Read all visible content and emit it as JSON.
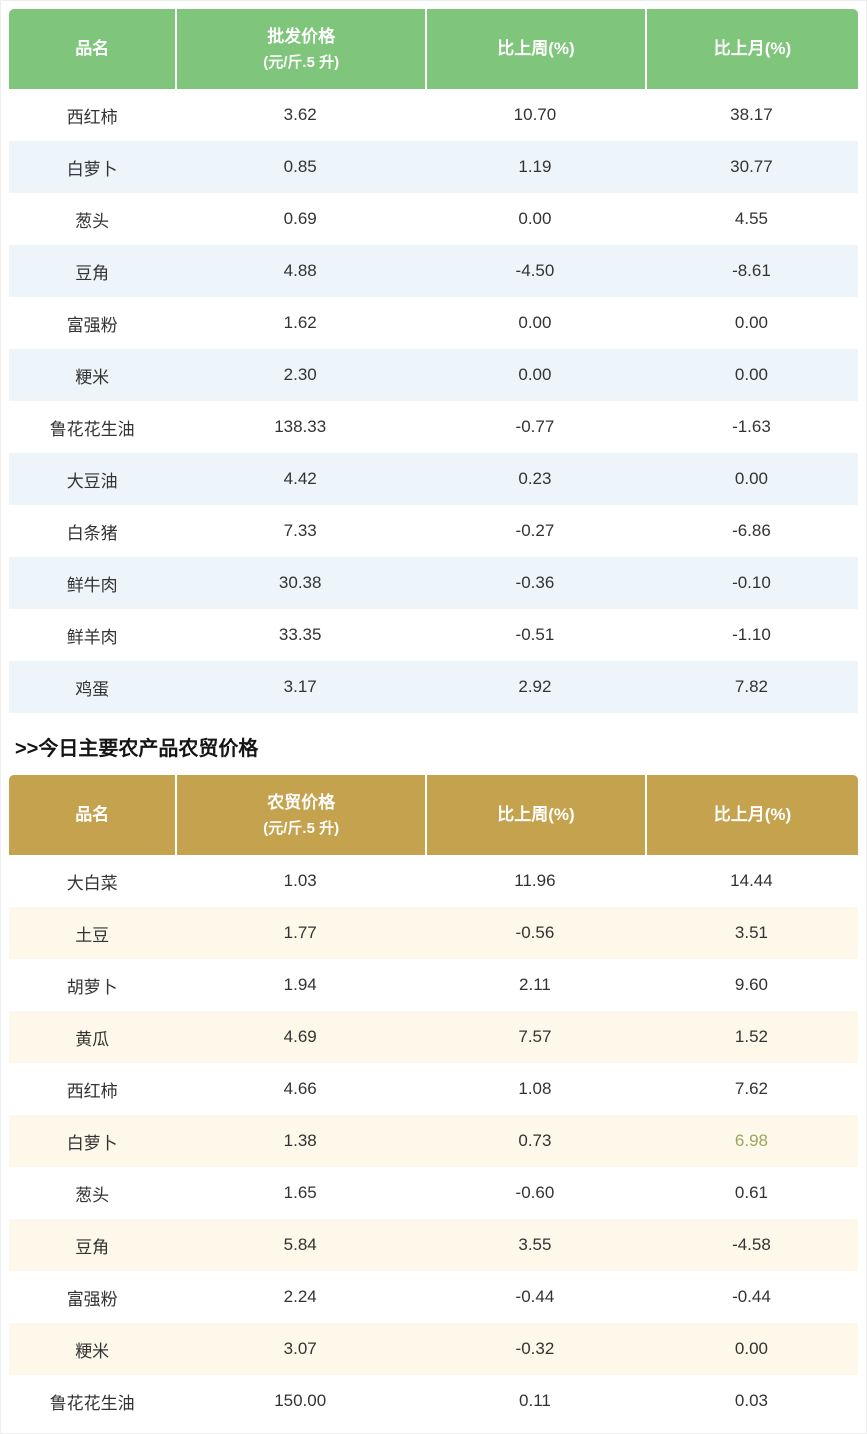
{
  "section_title": ">>今日主要农产品农贸价格",
  "wholesale_table": {
    "headers": [
      "品名",
      "批发价格",
      "比上周(%)",
      "比上月(%)"
    ],
    "unit": "(元/斤.5 升)",
    "theme": {
      "header_bg": "#7fc57b",
      "header_text": "#ffffff",
      "alt_row_bg": "#edf5fb"
    },
    "rows": [
      [
        "西红柿",
        "3.62",
        "10.70",
        "38.17"
      ],
      [
        "白萝卜",
        "0.85",
        "1.19",
        "30.77"
      ],
      [
        "葱头",
        "0.69",
        "0.00",
        "4.55"
      ],
      [
        "豆角",
        "4.88",
        "-4.50",
        "-8.61"
      ],
      [
        "富强粉",
        "1.62",
        "0.00",
        "0.00"
      ],
      [
        "粳米",
        "2.30",
        "0.00",
        "0.00"
      ],
      [
        "鲁花花生油",
        "138.33",
        "-0.77",
        "-1.63"
      ],
      [
        "大豆油",
        "4.42",
        "0.23",
        "0.00"
      ],
      [
        "白条猪",
        "7.33",
        "-0.27",
        "-6.86"
      ],
      [
        "鲜牛肉",
        "30.38",
        "-0.36",
        "-0.10"
      ],
      [
        "鲜羊肉",
        "33.35",
        "-0.51",
        "-1.10"
      ],
      [
        "鸡蛋",
        "3.17",
        "2.92",
        "7.82"
      ]
    ]
  },
  "market_table": {
    "headers": [
      "品名",
      "农贸价格",
      "比上周(%)",
      "比上月(%)"
    ],
    "unit": "(元/斤.5 升)",
    "theme": {
      "header_bg": "#c5a24d",
      "header_text": "#ffffff",
      "alt_row_bg": "#fdf8e9"
    },
    "cell_color_overrides": [
      {
        "row": 5,
        "col": 3,
        "color": "#a3a35f"
      }
    ],
    "rows": [
      [
        "大白菜",
        "1.03",
        "11.96",
        "14.44"
      ],
      [
        "土豆",
        "1.77",
        "-0.56",
        "3.51"
      ],
      [
        "胡萝卜",
        "1.94",
        "2.11",
        "9.60"
      ],
      [
        "黄瓜",
        "4.69",
        "7.57",
        "1.52"
      ],
      [
        "西红柿",
        "4.66",
        "1.08",
        "7.62"
      ],
      [
        "白萝卜",
        "1.38",
        "0.73",
        "6.98"
      ],
      [
        "葱头",
        "1.65",
        "-0.60",
        "0.61"
      ],
      [
        "豆角",
        "5.84",
        "3.55",
        "-4.58"
      ],
      [
        "富强粉",
        "2.24",
        "-0.44",
        "-0.44"
      ],
      [
        "粳米",
        "3.07",
        "-0.32",
        "0.00"
      ],
      [
        "鲁花花生油",
        "150.00",
        "0.11",
        "0.03"
      ]
    ]
  }
}
